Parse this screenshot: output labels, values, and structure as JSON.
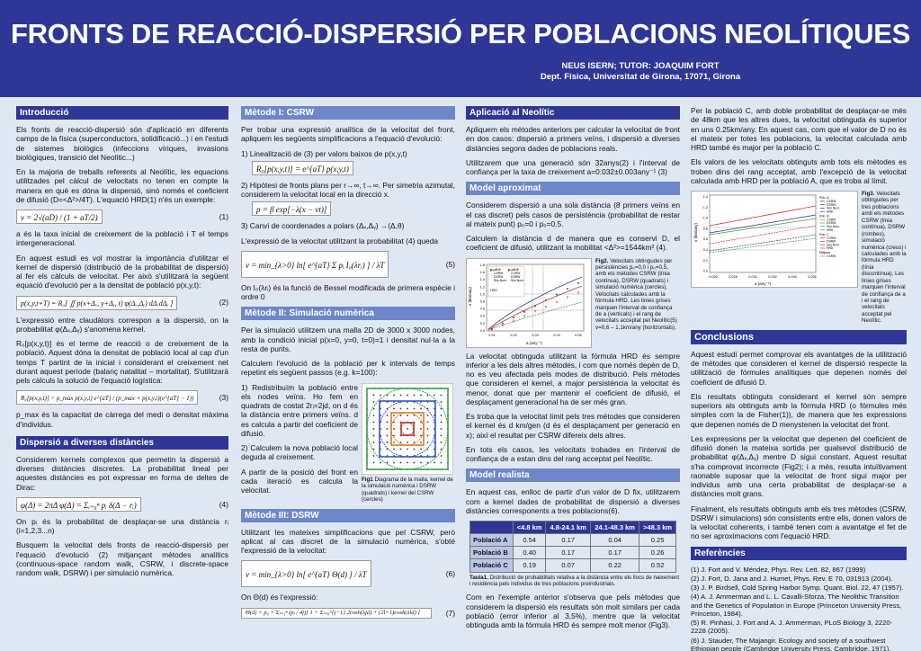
{
  "header": {
    "title": "FRONTS DE REACCIÓ-DISPERSIÓ PER POBLACIONS NEOLÍTIQUES",
    "authors": "NEUS ISERN; TUTOR: JOAQUIM FORT",
    "affiliation": "Dept. Física, Universitat de Girona, 17071, Girona"
  },
  "intro": {
    "heading": "Introducció",
    "p1": "Els fronts de reacció-dispersió són d'aplicació en diferents camps de la física (superconductors, solidificació...) i en l'estudi de sistemes biològics (infeccions víriques, invasions biològiques, transició del Neolític...)",
    "p2": "En la majoria de treballs referents al Neolític, les equacions utilitzades pel càlcul de velocitats no tenen en compte la manera en què es dóna la dispersió, sinó només el coeficient de difusió (D=<Δ²>/4T). L'equació HRD(1) n'és un exemple:",
    "eq1": "v = 2√(aD) / (1 + aT/2)",
    "eq1_num": "(1)",
    "p3": "a és la taxa inicial de creixement de la població i T el temps intergeneracional.",
    "p4": "En aquest estudi es vol mostrar la importància d'utilitzar el kernel de dispersió (distribució de la probabilitat de dispersió) al fer els càlculs de velocitat. Per això s'utilitzarà la següent equació d'evolució per a la densitat de població p(x,y,t):",
    "eq2": "p(x,y,t+T) = R₀[ ∬ p(x+Δₓ, y+Δᵧ, t) φ(Δₓ,Δᵧ) dΔₓdΔᵧ ]",
    "eq2_num": "(2)",
    "p5": "L'expressió entre claudàtors correspon a la dispersió, on la probabilitat φ(Δₓ,Δᵧ) s'anomena kernel.",
    "p6": "R₀[p(x,y,t)] és el terme de reacció o de creixement de la població. Aquest dóna la densitat de població local al cap d'un temps T partint de la inicial i considerant el creixement net durant aquest període (balanç natalitat – mortalitat). S'utilitzarà pels càlculs la solució de l'equació logística:",
    "eq3": "R₀[p(x,y,t)] = p_max p(x,y,t) e^{aT} / (p_max + p(x,y,t)(e^{aT} − 1))",
    "eq3_num": "(3)",
    "p7": "p_max és la capacitat de càrrega del medi o densitat màxima d'individus."
  },
  "dispersion": {
    "heading": "Dispersió a diverses distàncies",
    "p1": "Considerem kernels complexos que permetin la dispersió a diverses distàncies discretes. La probabilitat lineal per aquestes distàncies es pot expressar en forma de deltes de Dirac:",
    "eq4": "φ(Δ) = 2πΔ φ(Δ) = Σᵢ₌₀ⁿ pᵢ δ(Δ − rᵢ)",
    "eq4_num": "(4)",
    "p2": "On pᵢ és la probabilitat de desplaçar-se una distància rᵢ (i=1,2,3...n)",
    "p3": "Busquem la velocitat dels fronts de reacció-dispersió per l'equació d'evolució (2) mitjançant mètodes analítics (continuous-space random walk, CSRW, i discrete-space random walk, DSRW) i per simulació numèrica."
  },
  "csrw": {
    "heading": "Mètode I: CSRW",
    "p1": "Per trobar una expressió analítica de la velocitat del front, apliquem les següents simplificacions a l'equació d'evolució:",
    "s1": "1) Linealització de (3) per valors baixos de p(x,y,t)",
    "eq_lin": "R₀[p(x,y,t)] = e^{aT} p(x,y,t)",
    "s2": "2) Hipòtesi de fronts plans per r→∞, t→∞. Per simetria azimutal, considerem la velocitat local en la direcció x.",
    "eq_plane": "p = β exp[−λ(x − vt)]",
    "s3": "3) Canvi de coordenades a polars (Δₓ,Δᵧ) →(Δ,θ)",
    "p2": "L'expressió de la velocitat utilitzant la probabilitat (4) queda",
    "eq5": "v = min_{λ>0} ln[ e^{aT} Σ pᵢ I₀(λrᵢ) ] / λT",
    "eq5_num": "(5)",
    "p3": "On I₀(λrᵢ) és la funció de Bessel modificada de primera espècie i ordre 0"
  },
  "simulation": {
    "heading": "Mètode II: Simulació numèrica",
    "p1": "Per la simulació utilitzem una malla 2D de 3000 x 3000 nodes, amb la condició inicial p(x=0, y=0, t=0)=1 i densitat nul·la a la resta de punts.",
    "p2": "Calculem l'evolució de la població per k intervals de temps repetint els següent passos (e.g. k=100):",
    "step1": "1) Redistribuïm la població entre els nodes veïns. Ho fem en quadrats de costat 2rᵢ=2jd, on d és la distància entre primers veïns. d es calcula a partir del coeficient de difusió.",
    "step2": "2) Calculem la nova població local deguda al creixement.",
    "p3": "A partir de la posició del front en cada iteració es calcula la velocitat.",
    "fig1_label": "Fig1",
    "fig1_caption": "Diagrama de la malla, kernel de la simulació numèrica i DSRW (quadrats) i kernel del CSRW (cercles)"
  },
  "dsrw": {
    "heading": "Mètode III: DSRW",
    "p1": "Utilitzant les mateixes simplificacions que pel CSRW, però aplicat al cas discret de la simulació numèrica, s'obté l'expressió de la velocitat:",
    "eq6": "v = min_{λ>0} ln[ e^{aT} Θ(d) ] / λT",
    "eq6_num": "(6)",
    "p2": "On Θ(d) és l'expressió:",
    "eq7": "Θ(d) = p₀ + Σⱼ₌₁ⁿ (pⱼ / 4j)[ 1 + Σₗ₌₀^{j−1} 2cosh(λjd) + (2l+1)cosh(λld) ]",
    "eq7_num": "(7)"
  },
  "neolithic": {
    "heading": "Aplicació al Neolític",
    "p1": "Apliquem els mètodes anteriors per calcular la velocitat de front en dos casos: dispersió a primers veïns, i dispersió a diverses distàncies segons dades de poblacions reals.",
    "p2": "Utilitzarem que una generació són 32anys(2) i l'interval de confiança per la taxa de creixement a=0.032±0.003any⁻¹ (3)"
  },
  "approx": {
    "heading": "Model aproximat",
    "p1": "Considerem dispersió a una sola distància (8 primers veïns en el cas discret) pels casos de persistència (probabilitat de restar al mateix punt) p₀=0 i p₀=0.5.",
    "p2": "Calculem la distància d de manera que es conservi D, el coeficient de difusió, utilitzant la mobilitat <Δ²>=1544km² (4).",
    "fig2_label": "Fig2.",
    "fig2_caption": "Velocitats obtingudes per persistències p₀=0,0 i p₀=0,5, amb els mètodes CSRW (línia contínua), DSRW (quadrats) i simulació numèrica (cercles). Velocitats calculades amb la fórmula HRD. Les línies grises marquen l'interval de confiança de a (verticals) i el rang de velocitats acceptat pel Neolític(5) v=0,6 – 1,1km/any (horitzontals).",
    "p3": "La velocitat obtinguda utilitzant la fórmula HRD és sempre inferior a les dels altres mètodes, i com que només depèn de D, no es veu afectada pels modes de distribució. Pels mètodes que consideren el kernel, a major persistència la velocitat és menor, donat que per mantenir el coeficient de difusió, el desplaçament generacional ha de ser més gran.",
    "p4": "Es troba que la velocitat límit pels tres mètodes que consideren el kernel és d km/gen (d és el desplaçament per generació en x); així el resultat per CSRW difereix dels altres.",
    "p5": "En tots els casos, les velocitats trobades en l'interval de confiança de a estan dins del rang acceptat pel Neolític."
  },
  "chart2": {
    "ylabel": "v (km/any)",
    "xlabel": "a (any⁻¹)",
    "yticks": [
      "1.8",
      "1.6",
      "1.4",
      "1.2",
      "1.0",
      "0.8",
      "0.6",
      "0.4",
      "0.2",
      "0.0"
    ],
    "xticks": [
      "0.01",
      "0.02",
      "0.03",
      "0.04",
      "0.05"
    ],
    "legend_a": "p₀=0.0",
    "legend_b": "p₀=0.5",
    "legend_items": [
      "CSRW",
      "DSRW",
      "Sim.Num."
    ],
    "legend_hrd": "HRD"
  },
  "realistic": {
    "heading": "Model realista",
    "p1": "En aquest cas, enlloc de partir d'un valor de D fix, utilitzarem com a kernel dades de probabilitat de dispersió a diverses distàncies corresponents a tres poblacions(6).",
    "table": {
      "headers": [
        "",
        "<4.8 km",
        "4.8-24.1 km",
        "24.1-48.3 km",
        ">48.3 km"
      ],
      "rows": [
        [
          "Població A",
          "0.54",
          "0.17",
          "0.04",
          "0.25"
        ],
        [
          "Població B",
          "0.40",
          "0.17",
          "0.17",
          "0.26"
        ],
        [
          "Població C",
          "0.19",
          "0.07",
          "0.22",
          "0.52"
        ]
      ]
    },
    "table_label": "Taula1.",
    "table_caption": "Distribució de probabilitats relativa a la distància entre els llocs de naixement i residència pels individus de tres poblacions preindustrials.",
    "p2": "Com en l'exemple anterior s'observa que pels mètodes que considerem la dispersió els resultats són molt similars per cada població (error inferior al 3,5%), mentre que la velocitat obtinguda amb la fórmula HRD és sempre molt menor (Fig3)."
  },
  "col4": {
    "p1": "Per la població C, amb doble probabilitat de desplaçar-se més de 48km que les altres dues, la velocitat obtinguda és superior en uns 0.25km/any. En aquest cas, com que el valor de D no és el mateix per totes les poblacions, la velocitat calculada amb HRD també és major per la població C.",
    "p2": "Els valors de les velocitats obtinguts amb tots els mètodes es troben dins del rang acceptat, amb l'excepció de la velocitat calculada amb HRD per la població A, que es troba al límit.",
    "fig3_label": "Fig3.",
    "fig3_caption": "Velocitats obtingudes per tres poblacions amb els mètodes CSRW (línia contínua), DSRW (rombes), simulació numèrica (creus) i calculades amb la fórmula HRD (línia discontínua). Les línies grises marquen l'interval de confiança de a i el rang de velocitats acceptat pel Neolític."
  },
  "chart3": {
    "ylabel": "v (km/any)",
    "xlabel": "a (any⁻¹)",
    "yticks": [
      "1.4",
      "1.2",
      "1.0",
      "0.8",
      "0.6",
      "0.4",
      "0.2",
      "0.0"
    ],
    "xticks": [
      "0.026",
      "0.028",
      "0.030",
      "0.032",
      "0.034",
      "0.036"
    ],
    "groups": [
      {
        "name": "Pob. A",
        "items": [
          "CSRW",
          "DSRW",
          "Sim.Num.",
          "HRD"
        ]
      },
      {
        "name": "Pob. B",
        "items": [
          "CSRW",
          "DSRW",
          "Sim.Num.",
          "HRD"
        ]
      },
      {
        "name": "Pob. C",
        "items": [
          "CSRW",
          "DSRW",
          "Sim.Num.",
          "HRD"
        ]
      },
      {
        "name": "Mitjana",
        "items": [
          "CSRW"
        ]
      }
    ]
  },
  "conclusions": {
    "heading": "Conclusions",
    "p1": "Aquest estudi permet comprovar els avantatges de la utilització de mètodes que consideren el kernel de dispersió respecte la utilització de fórmules analítiques que depenen només del coeficient de difusió D.",
    "p2": "Els resultats obtinguts considerant el kernel són sempre superiors als obtinguts amb la fórmula HRD (o fórmules més simples com la de Fisher(1)), de manera que les expressions que depenen només de D menystenen la velocitat del front.",
    "p3": "Les expressions per la velocitat que depenen del coeficient de difusió donen la mateixa sortida per qualsevol distribució de probabilitat φ(Δₓ,Δᵧ) mentre D sigui constant. Aquest resultat s'ha comprovat incorrecte (Fig2); i a més, resulta intuïtivament raonable suposar que la velocitat de front sigui major per individus amb una certa probabilitat de desplaçar-se a distàncies molt grans.",
    "p4": "Finalment, els resultats obtinguts amb els tres mètodes (CSRW, DSRW i simulacions) són consistents entre ells, donen valors de la velocitat coherents, i també tenen com a avantatge el fet de no ser aproximacions com l'equació HRD."
  },
  "references": {
    "heading": "Referències",
    "items": [
      "(1) J. Fort and V. Méndez, Phys. Rev. Lett. 82, 867 (1999)",
      "(2) J. Fort, D. Jana and J. Humet, Phys. Rev. E 70, 031913 (2004).",
      "(3) J. P. Birdsell, Cold Spring Harbor Symp. Quant. Biol. 22, 47 (1957).",
      "(4) A. J. Ammerman and L. L. Cavalli-Sforza, The Neolithic Transition and the Genetics of Population in Europe (Princeton University Press, Princeton, 1984).",
      "(5) R. Pinhasi, J. Fort and A. J. Ammerman, PLoS Biology 3, 2220-2228 (2005).",
      "(6) J. Stauder, The Majangir. Ecology and society of a southwest Ethiopian people (Cambridge University Press, Cambridge, 1971)."
    ]
  }
}
